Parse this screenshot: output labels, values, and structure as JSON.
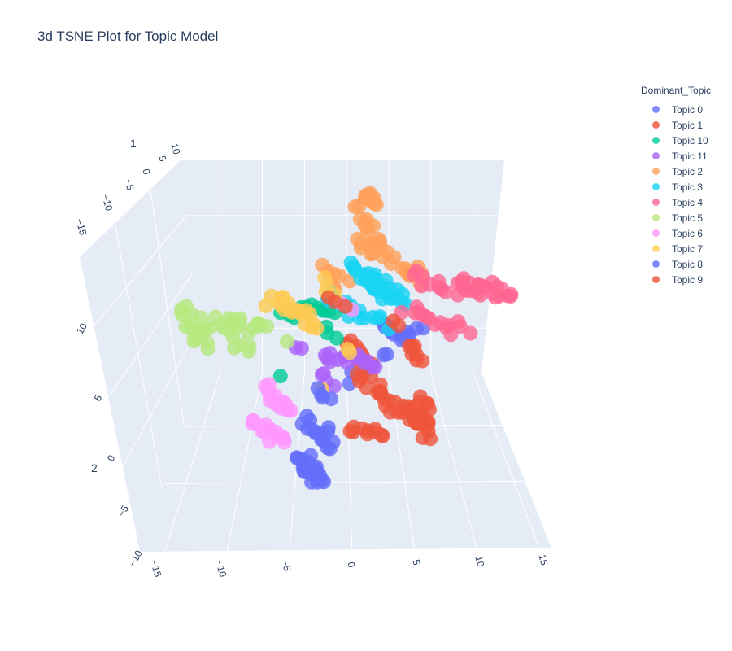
{
  "title": "3d TSNE Plot for Topic Model",
  "chart_data": {
    "type": "scatter3d",
    "title": "3d TSNE Plot for Topic Model",
    "legend_title": "Dominant_Topic",
    "legend_position": "top-right",
    "axes": {
      "x": {
        "ticks": [
          "−15",
          "−10",
          "−5",
          "0",
          "5",
          "10",
          "15"
        ],
        "range": [
          -17,
          16
        ]
      },
      "y": {
        "ticks": [
          "−10",
          "−5",
          "0",
          "5",
          "10"
        ],
        "range": [
          -10,
          12
        ]
      },
      "z": {
        "ticks": [
          "−15",
          "−10",
          "−5",
          "0",
          "5",
          "10"
        ],
        "range": [
          -17,
          11
        ]
      }
    },
    "axis_title_glyphs": [
      "1",
      "2"
    ],
    "series": [
      {
        "name": "Topic 0",
        "color": "#636efa"
      },
      {
        "name": "Topic 1",
        "color": "#ef553b"
      },
      {
        "name": "Topic 10",
        "color": "#00cc96"
      },
      {
        "name": "Topic 11",
        "color": "#ab63fa"
      },
      {
        "name": "Topic 2",
        "color": "#ffa15a"
      },
      {
        "name": "Topic 3",
        "color": "#19d3f3"
      },
      {
        "name": "Topic 4",
        "color": "#ff6692"
      },
      {
        "name": "Topic 5",
        "color": "#b6e880"
      },
      {
        "name": "Topic 6",
        "color": "#ff97ff"
      },
      {
        "name": "Topic 7",
        "color": "#fecb52"
      },
      {
        "name": "Topic 8",
        "color": "#636efa"
      },
      {
        "name": "Topic 9",
        "color": "#ef553b"
      }
    ]
  }
}
